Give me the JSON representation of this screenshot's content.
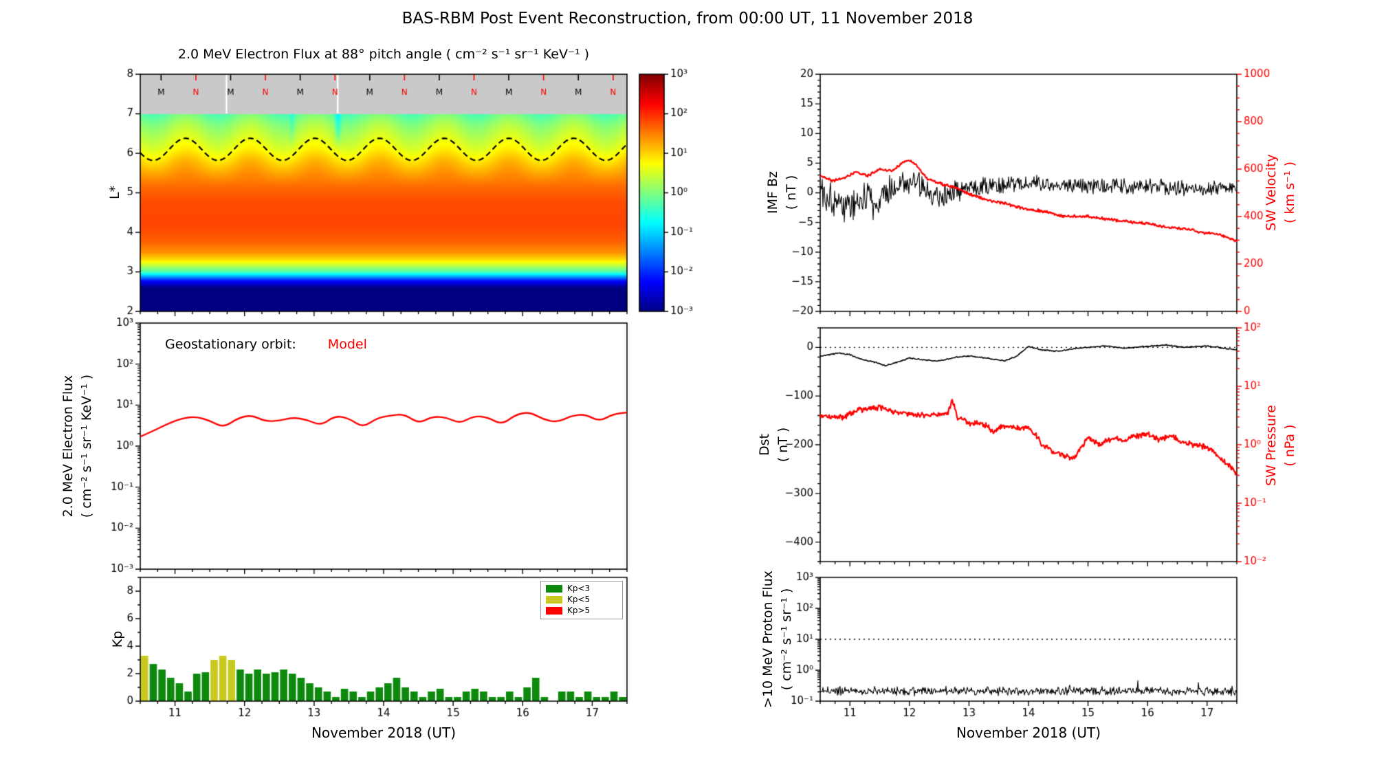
{
  "title": "BAS-RBM Post Event Reconstruction, from 00:00 UT, 11 November 2018",
  "x_axis": {
    "label": "November 2018 (UT)",
    "lim": [
      10.5,
      17.5
    ],
    "ticks": [
      11,
      12,
      13,
      14,
      15,
      16,
      17
    ],
    "minor_step": 0.25
  },
  "chart_data": [
    {
      "id": "electron_flux_heatmap",
      "type": "heatmap",
      "title": "2.0 MeV Electron Flux at 88° pitch angle ( cm⁻² s⁻¹ sr⁻¹ KeV⁻¹ )",
      "ylabel": "L*",
      "ylim": [
        2,
        8
      ],
      "yticks": [
        2,
        3,
        4,
        5,
        6,
        7,
        8
      ],
      "colorbar": {
        "log_min": -3,
        "log_max": 3,
        "tick_logs": [
          3,
          2,
          1,
          0,
          -1,
          -2,
          -3
        ],
        "tick_labels": [
          "10³",
          "10²",
          "10¹",
          "10⁰",
          "10⁻¹",
          "10⁻²",
          "10⁻³"
        ]
      },
      "profile": {
        "L": [
          2.0,
          2.6,
          2.78,
          2.9,
          3.0,
          3.15,
          3.3,
          3.5,
          3.8,
          4.2,
          4.8,
          5.2,
          5.5,
          5.8,
          6.1,
          6.4,
          6.7,
          7.0
        ],
        "log_flux": [
          -3,
          -3,
          -2.2,
          -1.2,
          -0.35,
          0.3,
          0.9,
          1.4,
          1.7,
          1.85,
          1.8,
          1.6,
          1.35,
          1.05,
          0.7,
          0.45,
          0.2,
          -0.15
        ]
      },
      "wave_modulation": {
        "amplitude": 0.18,
        "period_days": 0.93
      },
      "dashed_line": {
        "base_L": 6.1,
        "amplitude": 0.28,
        "period_days": 0.93,
        "peak_t": 11.15,
        "color": "#000000"
      },
      "dropout_streaks": [
        {
          "t": 13.34,
          "depth": 0.55,
          "width": 0.045
        },
        {
          "t": 12.68,
          "depth": 0.3,
          "width": 0.04
        }
      ],
      "top_band": {
        "color": "#c9c9c9",
        "l_range": [
          7,
          8
        ],
        "white_gaps": [
          11.74,
          13.34
        ],
        "markers": [
          {
            "t": 10.8,
            "label": "M",
            "color": "#000000"
          },
          {
            "t": 11.3,
            "label": "N",
            "color": "#ff0000"
          },
          {
            "t": 11.8,
            "label": "M",
            "color": "#000000"
          },
          {
            "t": 12.3,
            "label": "N",
            "color": "#ff0000"
          },
          {
            "t": 12.8,
            "label": "M",
            "color": "#000000"
          },
          {
            "t": 13.3,
            "label": "N",
            "color": "#ff0000"
          },
          {
            "t": 13.8,
            "label": "M",
            "color": "#000000"
          },
          {
            "t": 14.3,
            "label": "N",
            "color": "#ff0000"
          },
          {
            "t": 14.8,
            "label": "M",
            "color": "#000000"
          },
          {
            "t": 15.3,
            "label": "N",
            "color": "#ff0000"
          },
          {
            "t": 15.8,
            "label": "M",
            "color": "#000000"
          },
          {
            "t": 16.3,
            "label": "N",
            "color": "#ff0000"
          },
          {
            "t": 16.8,
            "label": "M",
            "color": "#000000"
          },
          {
            "t": 17.3,
            "label": "N",
            "color": "#ff0000"
          }
        ]
      }
    },
    {
      "id": "geostationary_flux",
      "type": "line",
      "y_scale": "log",
      "ylabel": "2.0 MeV Electron Flux\n( cm⁻² s⁻¹ sr⁻¹ KeV⁻¹ )",
      "log_range": [
        -3,
        3
      ],
      "ytick_logs": [
        3,
        2,
        1,
        0,
        -1,
        -2,
        -3
      ],
      "ytick_labels": [
        "10³",
        "10²",
        "10¹",
        "10⁰",
        "10⁻¹",
        "10⁻²",
        "10⁻³"
      ],
      "annotation": {
        "prefix": "Geostationary orbit:",
        "series_label": "Model",
        "series_color": "#ff0000"
      },
      "series": {
        "name": "Model",
        "color": "#ff0000",
        "t": [
          10.5,
          10.7,
          10.9,
          11.1,
          11.3,
          11.5,
          11.7,
          11.9,
          12.1,
          12.3,
          12.5,
          12.7,
          12.9,
          13.1,
          13.3,
          13.5,
          13.7,
          13.9,
          14.1,
          14.3,
          14.5,
          14.7,
          14.9,
          15.1,
          15.3,
          15.5,
          15.7,
          15.9,
          16.1,
          16.3,
          16.5,
          16.7,
          16.9,
          17.1,
          17.3,
          17.5
        ],
        "log_flux": [
          0.23,
          0.38,
          0.55,
          0.68,
          0.72,
          0.62,
          0.45,
          0.68,
          0.76,
          0.6,
          0.62,
          0.7,
          0.64,
          0.5,
          0.74,
          0.68,
          0.45,
          0.68,
          0.75,
          0.78,
          0.55,
          0.72,
          0.7,
          0.55,
          0.74,
          0.7,
          0.52,
          0.77,
          0.83,
          0.65,
          0.58,
          0.74,
          0.78,
          0.6,
          0.78,
          0.82
        ]
      }
    },
    {
      "id": "kp_index",
      "type": "bar",
      "ylabel": "Kp",
      "xlabel": "November 2018 (UT)",
      "ylim": [
        0,
        9
      ],
      "yticks": [
        0,
        2,
        4,
        6,
        8
      ],
      "t_start": 10.5,
      "bar_width_days": 0.125,
      "values": [
        3.3,
        2.7,
        2.3,
        1.7,
        1.3,
        0.7,
        2.0,
        2.1,
        3.0,
        3.3,
        3.0,
        2.3,
        2.0,
        2.3,
        2.0,
        2.1,
        2.3,
        2.0,
        1.7,
        1.3,
        1.0,
        0.7,
        0.3,
        0.9,
        0.7,
        0.3,
        0.7,
        1.0,
        1.3,
        1.7,
        1.0,
        0.7,
        0.3,
        0.7,
        0.9,
        0.3,
        0.3,
        0.7,
        0.9,
        0.7,
        0.3,
        0.3,
        0.7,
        0.3,
        1.0,
        1.7,
        0.3,
        0.0,
        0.7,
        0.7,
        0.3,
        0.7,
        0.3,
        0.3,
        0.7,
        0.3
      ],
      "thresholds": {
        "low": 3,
        "high": 5
      },
      "legend": [
        {
          "label": "Kp<3",
          "color": "#0d8a0d"
        },
        {
          "label": "Kp<5",
          "color": "#c9c920"
        },
        {
          "label": "Kp>5",
          "color": "#ff0000"
        }
      ]
    },
    {
      "id": "imf_bz_sw_velocity",
      "type": "dual_line",
      "left": {
        "label": "IMF Bz\n( nT )",
        "color": "#000000",
        "lim": [
          -20,
          20
        ],
        "ticks": [
          20,
          15,
          10,
          5,
          0,
          -5,
          -10,
          -15,
          -20
        ],
        "trend_t": [
          10.5,
          10.8,
          11.0,
          11.2,
          11.5,
          11.8,
          12.0,
          12.2,
          12.5,
          12.8,
          13.0,
          13.5,
          14.0,
          14.5,
          15.0,
          15.5,
          16.0,
          16.5,
          17.0,
          17.5
        ],
        "trend_v": [
          0.5,
          -1.5,
          -2.5,
          -1.0,
          -1.5,
          1.5,
          2.0,
          1.0,
          -0.5,
          0.5,
          1.0,
          1.5,
          1.5,
          1.2,
          1.0,
          1.2,
          1.0,
          0.8,
          0.8,
          0.5
        ],
        "noise_amp_t": [
          10.5,
          11.5,
          12.0,
          12.5,
          13.0,
          14.0,
          17.5
        ],
        "noise_amp_v": [
          2.6,
          2.6,
          2.2,
          1.9,
          1.5,
          1.3,
          1.1
        ]
      },
      "right": {
        "label": "SW Velocity\n( km s⁻¹ )",
        "color": "#ff0000",
        "lim": [
          0,
          1000
        ],
        "ticks": [
          0,
          200,
          400,
          600,
          800,
          1000
        ],
        "trend_t": [
          10.5,
          10.7,
          10.9,
          11.1,
          11.3,
          11.5,
          11.7,
          11.9,
          12.0,
          12.1,
          12.3,
          12.5,
          12.8,
          13.0,
          13.3,
          13.6,
          14.0,
          14.3,
          14.6,
          15.0,
          15.3,
          15.6,
          16.0,
          16.3,
          16.6,
          17.0,
          17.2,
          17.4,
          17.5
        ],
        "trend_v": [
          575,
          550,
          560,
          590,
          570,
          600,
          590,
          630,
          640,
          620,
          560,
          540,
          520,
          495,
          470,
          455,
          430,
          420,
          400,
          400,
          390,
          380,
          370,
          355,
          350,
          330,
          325,
          305,
          295
        ],
        "noise_amp": 7
      }
    },
    {
      "id": "dst_sw_pressure",
      "type": "dual_line",
      "left": {
        "label": "Dst\n( nT )",
        "color": "#000000",
        "lim": [
          -440,
          40
        ],
        "ticks": [
          0,
          -100,
          -200,
          -300,
          -400
        ],
        "dotted_zero": true,
        "trend_t": [
          10.5,
          10.8,
          11.0,
          11.2,
          11.4,
          11.6,
          11.8,
          12.0,
          12.2,
          12.5,
          12.8,
          13.0,
          13.3,
          13.6,
          13.8,
          14.0,
          14.2,
          14.5,
          14.8,
          15.0,
          15.3,
          15.6,
          16.0,
          16.3,
          16.6,
          17.0,
          17.3,
          17.5
        ],
        "trend_v": [
          -18,
          -12,
          -15,
          -25,
          -30,
          -38,
          -30,
          -22,
          -25,
          -28,
          -20,
          -18,
          -22,
          -28,
          -18,
          2,
          -5,
          -8,
          -2,
          0,
          3,
          -2,
          2,
          5,
          0,
          3,
          -2,
          -5
        ],
        "noise_amp": 1.5
      },
      "right": {
        "label": "SW Pressure\n( nPa )",
        "color": "#ff0000",
        "log_range": [
          -2,
          2
        ],
        "tick_logs": [
          2,
          1,
          0,
          -1,
          -2
        ],
        "tick_labels": [
          "10²",
          "10¹",
          "10⁰",
          "10⁻¹",
          "10⁻²"
        ],
        "trend_t": [
          10.5,
          10.7,
          10.9,
          11.1,
          11.3,
          11.5,
          11.7,
          11.9,
          12.1,
          12.3,
          12.5,
          12.65,
          12.72,
          12.8,
          13.0,
          13.2,
          13.4,
          13.6,
          13.8,
          14.0,
          14.2,
          14.4,
          14.6,
          14.8,
          15.0,
          15.2,
          15.4,
          15.6,
          15.8,
          16.0,
          16.2,
          16.4,
          16.6,
          16.8,
          17.0,
          17.2,
          17.35,
          17.5
        ],
        "trend_v": [
          3.2,
          2.9,
          3.0,
          3.9,
          4.1,
          4.3,
          3.7,
          3.5,
          3.3,
          3.1,
          3.3,
          3.6,
          5.5,
          3.0,
          2.3,
          2.4,
          1.7,
          2.1,
          1.9,
          2.0,
          1.1,
          0.75,
          0.65,
          0.6,
          1.3,
          1.0,
          1.3,
          1.2,
          1.4,
          1.5,
          1.2,
          1.4,
          1.1,
          1.0,
          0.9,
          0.6,
          0.45,
          0.32
        ],
        "noise_frac": 0.13
      }
    },
    {
      "id": "proton_flux",
      "type": "line",
      "y_scale": "log",
      "ylabel": ">10 MeV Proton Flux\n( cm⁻² s⁻¹ sr⁻¹ )",
      "xlabel": "November 2018 (UT)",
      "log_range": [
        -1,
        3
      ],
      "ytick_logs": [
        3,
        2,
        1,
        0,
        -1
      ],
      "ytick_labels": [
        "10³",
        "10²",
        "10¹",
        "10⁰",
        "10⁻¹"
      ],
      "dotted_level_log": 1,
      "series": {
        "color": "#000000",
        "base_log": -0.68,
        "noise_log_amp": 0.12
      }
    }
  ]
}
